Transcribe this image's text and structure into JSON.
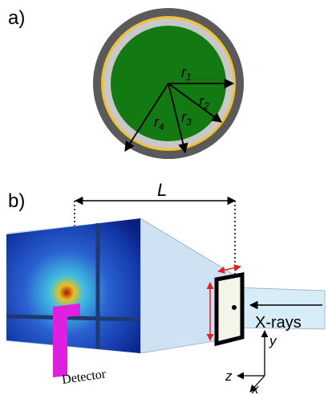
{
  "panel_a": {
    "label": "a)",
    "radii": [
      {
        "symbol": "r",
        "index": "1"
      },
      {
        "symbol": "r",
        "index": "2"
      },
      {
        "symbol": "r",
        "index": "3"
      },
      {
        "symbol": "r",
        "index": "4"
      }
    ]
  },
  "panel_b": {
    "label": "b)",
    "distance": "L",
    "beam": "X-rays",
    "detector": "Detector",
    "axes": {
      "y": "y",
      "z": "z",
      "x": "x"
    }
  }
}
